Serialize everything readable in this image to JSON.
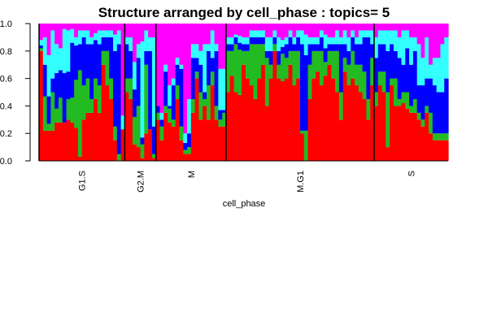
{
  "chart_data": {
    "type": "bar",
    "stacked": true,
    "title": "Structure arranged by cell_phase : topics= 5",
    "xlabel": "cell_phase",
    "ylabel": "",
    "ylim": [
      0,
      1
    ],
    "yticks": [
      "0.0",
      "0.2",
      "0.4",
      "0.6",
      "0.8",
      "1.0"
    ],
    "grid": false,
    "legend": "none",
    "topic_colors": [
      "#ff0000",
      "#22bb22",
      "#0000ff",
      "#33ffff",
      "#ff00ff"
    ],
    "groups": [
      {
        "name": "G1.S",
        "samples": [
          [
            0.8,
            0.02,
            0.02,
            0.04,
            0.12
          ],
          [
            0.22,
            0.25,
            0.23,
            0.2,
            0.1
          ],
          [
            0.22,
            0.05,
            0.2,
            0.3,
            0.23
          ],
          [
            0.22,
            0.28,
            0.1,
            0.35,
            0.05
          ],
          [
            0.28,
            0.1,
            0.26,
            0.21,
            0.15
          ],
          [
            0.28,
            0.18,
            0.2,
            0.16,
            0.18
          ],
          [
            0.28,
            0.0,
            0.36,
            0.32,
            0.04
          ],
          [
            0.3,
            0.15,
            0.2,
            0.3,
            0.05
          ],
          [
            0.28,
            0.18,
            0.4,
            0.1,
            0.04
          ],
          [
            0.24,
            0.35,
            0.25,
            0.06,
            0.1
          ],
          [
            0.03,
            0.63,
            0.19,
            0.1,
            0.05
          ],
          [
            0.3,
            0.25,
            0.35,
            0.05,
            0.05
          ],
          [
            0.35,
            0.25,
            0.25,
            0.1,
            0.05
          ],
          [
            0.35,
            0.1,
            0.4,
            0.05,
            0.1
          ],
          [
            0.45,
            0.15,
            0.28,
            0.05,
            0.07
          ],
          [
            0.35,
            0.2,
            0.3,
            0.1,
            0.05
          ],
          [
            0.7,
            0.1,
            0.1,
            0.05,
            0.05
          ],
          [
            0.55,
            0.25,
            0.1,
            0.05,
            0.05
          ],
          [
            0.45,
            0.15,
            0.3,
            0.05,
            0.05
          ],
          [
            0.15,
            0.1,
            0.55,
            0.12,
            0.08
          ],
          [
            0.0,
            0.05,
            0.8,
            0.1,
            0.05
          ],
          [
            0.23,
            0.0,
            0.0,
            0.1,
            0.67
          ]
        ]
      },
      {
        "name": "G2.M",
        "samples": [
          [
            0.5,
            0.1,
            0.25,
            0.05,
            0.1
          ],
          [
            0.45,
            0.15,
            0.2,
            0.1,
            0.1
          ],
          [
            0.12,
            0.2,
            0.2,
            0.2,
            0.28
          ],
          [
            0.1,
            0.3,
            0.35,
            0.1,
            0.15
          ],
          [
            0.02,
            0.1,
            0.05,
            0.7,
            0.13
          ],
          [
            0.2,
            0.5,
            0.1,
            0.15,
            0.05
          ],
          [
            0.23,
            0.0,
            0.57,
            0.1,
            0.1
          ],
          [
            0.02,
            0.03,
            0.2,
            0.65,
            0.1
          ]
        ]
      },
      {
        "name": "M",
        "samples": [
          [
            0.3,
            0.05,
            0.05,
            0.0,
            0.6
          ],
          [
            0.15,
            0.1,
            0.05,
            0.05,
            0.65
          ],
          [
            0.35,
            0.05,
            0.25,
            0.05,
            0.3
          ],
          [
            0.28,
            0.1,
            0.02,
            0.15,
            0.45
          ],
          [
            0.25,
            0.05,
            0.25,
            0.05,
            0.4
          ],
          [
            0.45,
            0.1,
            0.15,
            0.05,
            0.25
          ],
          [
            0.15,
            0.1,
            0.42,
            0.03,
            0.3
          ],
          [
            0.05,
            0.03,
            0.05,
            0.07,
            0.8
          ],
          [
            0.05,
            0.05,
            0.1,
            0.25,
            0.55
          ],
          [
            0.35,
            0.1,
            0.3,
            0.1,
            0.15
          ],
          [
            0.6,
            0.05,
            0.1,
            0.1,
            0.15
          ],
          [
            0.3,
            0.2,
            0.2,
            0.1,
            0.2
          ],
          [
            0.4,
            0.05,
            0.05,
            0.35,
            0.15
          ],
          [
            0.3,
            0.25,
            0.25,
            0.05,
            0.15
          ],
          [
            0.55,
            0.1,
            0.1,
            0.2,
            0.05
          ],
          [
            0.3,
            0.1,
            0.4,
            0.05,
            0.15
          ],
          [
            0.25,
            0.05,
            0.07,
            0.3,
            0.33
          ],
          [
            0.25,
            0.1,
            0.02,
            0.3,
            0.33
          ]
        ]
      },
      {
        "name": "M.G1",
        "samples": [
          [
            0.5,
            0.3,
            0.05,
            0.05,
            0.1
          ],
          [
            0.62,
            0.18,
            0.05,
            0.05,
            0.1
          ],
          [
            0.5,
            0.35,
            0.05,
            0.02,
            0.08
          ],
          [
            0.48,
            0.33,
            0.05,
            0.05,
            0.09
          ],
          [
            0.7,
            0.1,
            0.05,
            0.05,
            0.1
          ],
          [
            0.6,
            0.2,
            0.05,
            0.05,
            0.1
          ],
          [
            0.55,
            0.3,
            0.05,
            0.05,
            0.05
          ],
          [
            0.45,
            0.4,
            0.05,
            0.05,
            0.05
          ],
          [
            0.6,
            0.25,
            0.05,
            0.05,
            0.05
          ],
          [
            0.7,
            0.15,
            0.05,
            0.05,
            0.05
          ],
          [
            0.4,
            0.35,
            0.05,
            0.1,
            0.1
          ],
          [
            0.6,
            0.1,
            0.1,
            0.1,
            0.1
          ],
          [
            0.8,
            0.05,
            0.05,
            0.05,
            0.05
          ],
          [
            0.6,
            0.1,
            0.1,
            0.1,
            0.1
          ],
          [
            0.58,
            0.2,
            0.05,
            0.05,
            0.12
          ],
          [
            0.6,
            0.15,
            0.1,
            0.05,
            0.1
          ],
          [
            0.7,
            0.1,
            0.1,
            0.05,
            0.05
          ],
          [
            0.55,
            0.25,
            0.05,
            0.05,
            0.1
          ],
          [
            0.6,
            0.2,
            0.1,
            0.05,
            0.05
          ],
          [
            0.2,
            0.02,
            0.63,
            0.1,
            0.05
          ],
          [
            0.0,
            0.22,
            0.55,
            0.15,
            0.08
          ],
          [
            0.45,
            0.25,
            0.15,
            0.05,
            0.1
          ],
          [
            0.6,
            0.2,
            0.05,
            0.05,
            0.1
          ],
          [
            0.65,
            0.15,
            0.05,
            0.05,
            0.1
          ],
          [
            0.55,
            0.25,
            0.1,
            0.05,
            0.05
          ],
          [
            0.62,
            0.1,
            0.1,
            0.1,
            0.08
          ],
          [
            0.7,
            0.1,
            0.05,
            0.05,
            0.1
          ],
          [
            0.6,
            0.2,
            0.05,
            0.05,
            0.1
          ],
          [
            0.5,
            0.3,
            0.05,
            0.1,
            0.05
          ],
          [
            0.3,
            0.2,
            0.35,
            0.05,
            0.1
          ],
          [
            0.65,
            0.1,
            0.1,
            0.1,
            0.05
          ],
          [
            0.55,
            0.15,
            0.1,
            0.1,
            0.1
          ],
          [
            0.6,
            0.2,
            0.1,
            0.05,
            0.05
          ],
          [
            0.55,
            0.15,
            0.15,
            0.05,
            0.1
          ],
          [
            0.5,
            0.2,
            0.15,
            0.1,
            0.05
          ],
          [
            0.45,
            0.2,
            0.25,
            0.05,
            0.05
          ],
          [
            0.3,
            0.15,
            0.45,
            0.05,
            0.05
          ],
          [
            0.55,
            0.2,
            0.1,
            0.1,
            0.05
          ]
        ]
      },
      {
        "name": "S",
        "samples": [
          [
            0.4,
            0.1,
            0.25,
            0.15,
            0.1
          ],
          [
            0.55,
            0.1,
            0.2,
            0.1,
            0.05
          ],
          [
            0.5,
            0.15,
            0.2,
            0.1,
            0.05
          ],
          [
            0.1,
            0.4,
            0.3,
            0.15,
            0.05
          ],
          [
            0.55,
            0.05,
            0.25,
            0.1,
            0.05
          ],
          [
            0.4,
            0.2,
            0.2,
            0.15,
            0.05
          ],
          [
            0.4,
            0.05,
            0.3,
            0.15,
            0.1
          ],
          [
            0.42,
            0.08,
            0.2,
            0.25,
            0.05
          ],
          [
            0.38,
            0.12,
            0.32,
            0.13,
            0.05
          ],
          [
            0.35,
            0.05,
            0.3,
            0.2,
            0.1
          ],
          [
            0.35,
            0.1,
            0.35,
            0.1,
            0.1
          ],
          [
            0.3,
            0.05,
            0.2,
            0.3,
            0.15
          ],
          [
            0.25,
            0.05,
            0.25,
            0.2,
            0.25
          ],
          [
            0.35,
            0.05,
            0.2,
            0.3,
            0.1
          ],
          [
            0.2,
            0.15,
            0.25,
            0.1,
            0.3
          ],
          [
            0.15,
            0.05,
            0.35,
            0.2,
            0.25
          ],
          [
            0.15,
            0.05,
            0.3,
            0.25,
            0.25
          ],
          [
            0.15,
            0.05,
            0.3,
            0.35,
            0.15
          ],
          [
            0.15,
            0.05,
            0.4,
            0.3,
            0.1
          ]
        ]
      }
    ]
  }
}
